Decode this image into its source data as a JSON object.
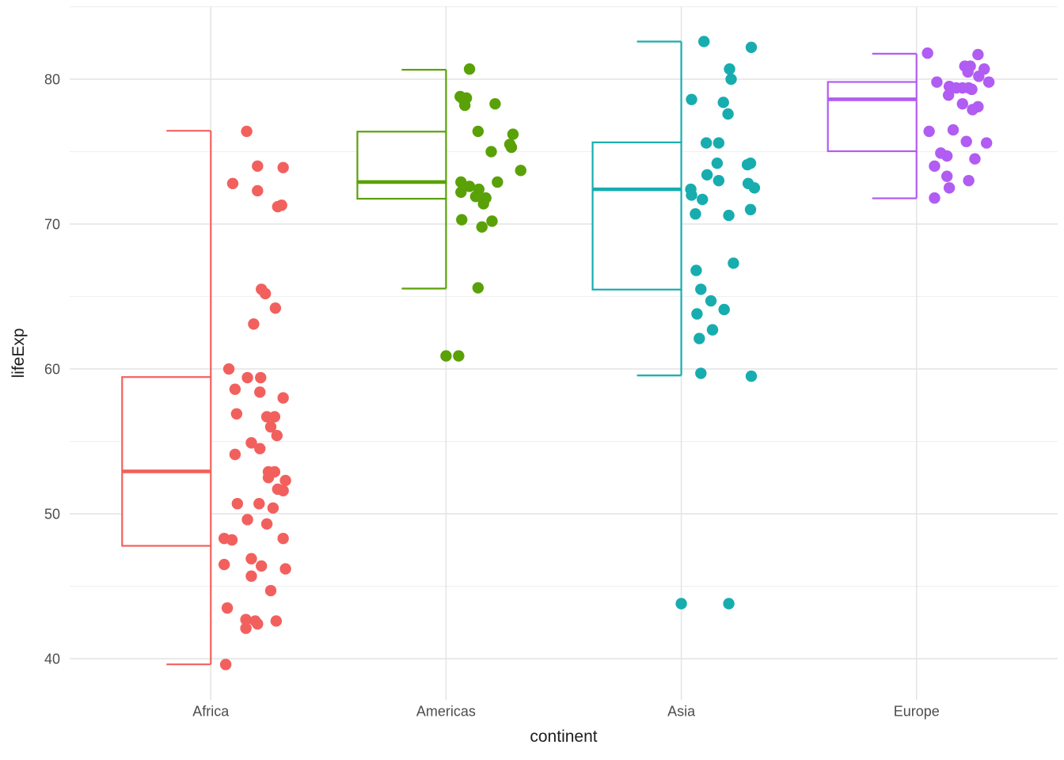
{
  "chart_data": {
    "type": "boxplot",
    "variant": "half-boxplot-left with jittered points on right",
    "title": "",
    "xlabel": "continent",
    "ylabel": "lifeExp",
    "categories": [
      "Africa",
      "Americas",
      "Asia",
      "Europe"
    ],
    "y_axis": {
      "ticks": [
        40,
        50,
        60,
        70,
        80
      ],
      "minor_ticks": [
        45,
        55,
        65,
        75,
        85
      ],
      "domain": [
        37.16,
        85.03
      ]
    },
    "grid": true,
    "legend": "none",
    "colors": {
      "africa": "#F2605D",
      "americas": "#5AA108",
      "asia": "#17ADAF",
      "europe": "#B15CF2",
      "grid_major": "#E4E4E4",
      "grid_minor": "#F0F0F0",
      "tick_label": "#4D4D4D",
      "axis_title": "#1E1E1E"
    },
    "series": [
      {
        "name": "Africa",
        "color": "#F2605D",
        "box": {
          "whisker_low": 39.61,
          "q1": 47.79,
          "median": 52.93,
          "q3": 59.44,
          "whisker_high": 76.44
        },
        "outliers": [],
        "points": [
          [
            76.4,
            0.34
          ],
          [
            74.0,
            0.48
          ],
          [
            73.9,
            0.81
          ],
          [
            72.8,
            0.16
          ],
          [
            72.3,
            0.48
          ],
          [
            71.3,
            0.79
          ],
          [
            71.2,
            0.74
          ],
          [
            65.5,
            0.53
          ],
          [
            65.2,
            0.58
          ],
          [
            64.2,
            0.71
          ],
          [
            63.1,
            0.43
          ],
          [
            60.0,
            0.11
          ],
          [
            59.4,
            0.35
          ],
          [
            59.4,
            0.52
          ],
          [
            58.6,
            0.19
          ],
          [
            58.4,
            0.51
          ],
          [
            58.0,
            0.81
          ],
          [
            56.9,
            0.21
          ],
          [
            56.7,
            0.7
          ],
          [
            56.7,
            0.6
          ],
          [
            56.0,
            0.65
          ],
          [
            55.4,
            0.73
          ],
          [
            54.9,
            0.4
          ],
          [
            54.5,
            0.51
          ],
          [
            54.1,
            0.19
          ],
          [
            52.9,
            0.62
          ],
          [
            52.9,
            0.7
          ],
          [
            52.5,
            0.62
          ],
          [
            52.3,
            0.84
          ],
          [
            51.7,
            0.74
          ],
          [
            51.6,
            0.81
          ],
          [
            50.7,
            0.22
          ],
          [
            50.7,
            0.5
          ],
          [
            50.4,
            0.68
          ],
          [
            49.6,
            0.35
          ],
          [
            49.3,
            0.6
          ],
          [
            48.3,
            0.05
          ],
          [
            48.3,
            0.81
          ],
          [
            48.2,
            0.15
          ],
          [
            46.9,
            0.4
          ],
          [
            46.5,
            0.05
          ],
          [
            46.4,
            0.53
          ],
          [
            46.2,
            0.84
          ],
          [
            45.7,
            0.4
          ],
          [
            44.7,
            0.65
          ],
          [
            43.5,
            0.09
          ],
          [
            42.7,
            0.33
          ],
          [
            42.6,
            0.45
          ],
          [
            42.6,
            0.72
          ],
          [
            42.4,
            0.48
          ],
          [
            42.1,
            0.33
          ],
          [
            39.6,
            0.07
          ]
        ]
      },
      {
        "name": "Americas",
        "color": "#5AA108",
        "box": {
          "whisker_low": 65.55,
          "q1": 71.75,
          "median": 72.9,
          "q3": 76.38,
          "whisker_high": 80.65
        },
        "outliers": [
          60.9
        ],
        "points": [
          [
            80.7,
            0.18
          ],
          [
            78.8,
            0.06
          ],
          [
            78.7,
            0.14
          ],
          [
            78.6,
            0.1
          ],
          [
            78.3,
            0.51
          ],
          [
            78.2,
            0.12
          ],
          [
            76.4,
            0.29
          ],
          [
            76.2,
            0.74
          ],
          [
            75.5,
            0.7
          ],
          [
            75.3,
            0.72
          ],
          [
            75.0,
            0.46
          ],
          [
            73.7,
            0.84
          ],
          [
            72.9,
            0.07
          ],
          [
            72.9,
            0.54
          ],
          [
            72.6,
            0.18
          ],
          [
            72.4,
            0.3
          ],
          [
            72.2,
            0.07
          ],
          [
            71.9,
            0.26
          ],
          [
            71.8,
            0.39
          ],
          [
            71.4,
            0.36
          ],
          [
            70.3,
            0.08
          ],
          [
            70.2,
            0.47
          ],
          [
            69.8,
            0.34
          ],
          [
            65.6,
            0.29
          ],
          [
            60.9,
            0.04
          ]
        ]
      },
      {
        "name": "Asia",
        "color": "#17ADAF",
        "box": {
          "whisker_low": 59.55,
          "q1": 65.48,
          "median": 72.4,
          "q3": 75.64,
          "whisker_high": 82.6
        },
        "outliers": [
          43.8
        ],
        "points": [
          [
            82.6,
            0.17
          ],
          [
            82.2,
            0.78
          ],
          [
            80.7,
            0.5
          ],
          [
            80.0,
            0.52
          ],
          [
            78.6,
            0.01
          ],
          [
            78.4,
            0.42
          ],
          [
            77.6,
            0.48
          ],
          [
            75.6,
            0.2
          ],
          [
            75.6,
            0.36
          ],
          [
            74.2,
            0.34
          ],
          [
            74.2,
            0.77
          ],
          [
            74.1,
            0.73
          ],
          [
            73.4,
            0.21
          ],
          [
            73.0,
            0.36
          ],
          [
            72.8,
            0.74
          ],
          [
            72.5,
            0.82
          ],
          [
            72.4,
            0.0
          ],
          [
            72.0,
            0.01
          ],
          [
            71.7,
            0.15
          ],
          [
            71.0,
            0.77
          ],
          [
            70.7,
            0.06
          ],
          [
            70.6,
            0.49
          ],
          [
            67.3,
            0.55
          ],
          [
            66.8,
            0.07
          ],
          [
            65.5,
            0.13
          ],
          [
            64.7,
            0.26
          ],
          [
            64.1,
            0.43
          ],
          [
            63.8,
            0.08
          ],
          [
            62.7,
            0.28
          ],
          [
            62.1,
            0.11
          ],
          [
            59.7,
            0.13
          ],
          [
            59.5,
            0.78
          ],
          [
            43.8,
            0.49
          ]
        ]
      },
      {
        "name": "Europe",
        "color": "#B15CF2",
        "box": {
          "whisker_low": 71.78,
          "q1": 75.03,
          "median": 78.61,
          "q3": 79.81,
          "whisker_high": 81.76
        },
        "outliers": [],
        "points": [
          [
            81.8,
            0.02
          ],
          [
            81.7,
            0.67
          ],
          [
            80.9,
            0.5
          ],
          [
            80.9,
            0.57
          ],
          [
            80.7,
            0.75
          ],
          [
            80.5,
            0.54
          ],
          [
            80.2,
            0.68
          ],
          [
            79.8,
            0.14
          ],
          [
            79.8,
            0.81
          ],
          [
            79.5,
            0.3
          ],
          [
            79.4,
            0.39
          ],
          [
            79.4,
            0.47
          ],
          [
            79.4,
            0.55
          ],
          [
            79.3,
            0.59
          ],
          [
            78.9,
            0.29
          ],
          [
            78.3,
            0.47
          ],
          [
            78.1,
            0.67
          ],
          [
            77.9,
            0.6
          ],
          [
            76.5,
            0.35
          ],
          [
            76.4,
            0.04
          ],
          [
            75.7,
            0.52
          ],
          [
            75.6,
            0.78
          ],
          [
            74.9,
            0.19
          ],
          [
            74.7,
            0.27
          ],
          [
            74.5,
            0.63
          ],
          [
            74.0,
            0.11
          ],
          [
            73.3,
            0.27
          ],
          [
            73.0,
            0.55
          ],
          [
            72.5,
            0.3
          ],
          [
            71.8,
            0.11
          ]
        ]
      }
    ]
  }
}
